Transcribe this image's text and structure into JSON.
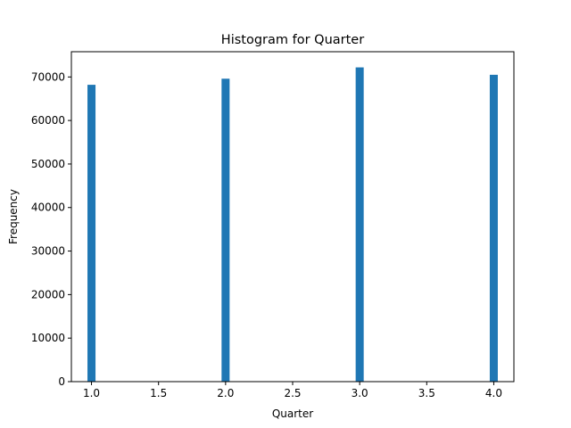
{
  "chart_data": {
    "type": "bar",
    "title": "Histogram for Quarter",
    "xlabel": "Quarter",
    "ylabel": "Frequency",
    "x": [
      1.0,
      2.0,
      3.0,
      4.0
    ],
    "values": [
      68200,
      69600,
      72200,
      70500
    ],
    "bar_width": 0.06,
    "xlim": [
      0.85,
      4.15
    ],
    "ylim": [
      0,
      75800
    ],
    "xticks": [
      "1.0",
      "1.5",
      "2.0",
      "2.5",
      "3.0",
      "3.5",
      "4.0"
    ],
    "yticks": [
      "0",
      "10000",
      "20000",
      "30000",
      "40000",
      "50000",
      "60000",
      "70000"
    ],
    "bar_color": "#1f77b4",
    "grid": false,
    "legend": "none"
  }
}
